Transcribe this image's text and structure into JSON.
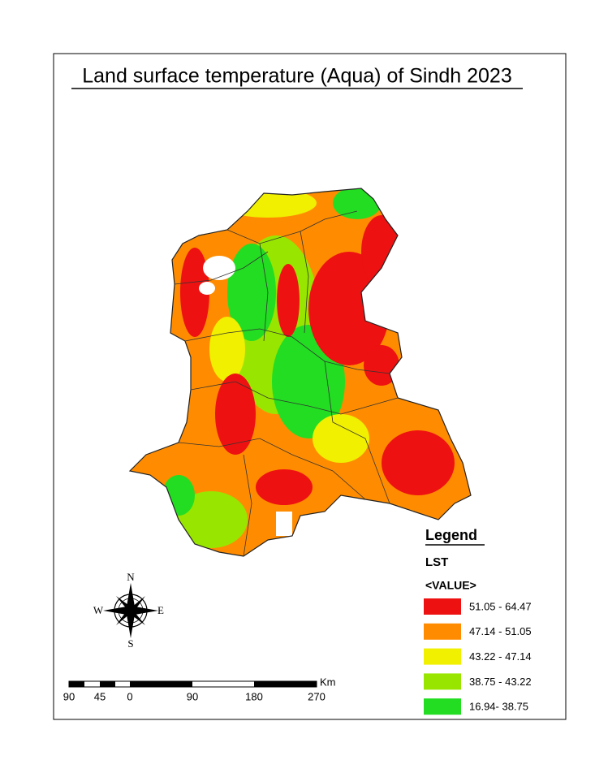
{
  "title": "Land surface temperature (Aqua) of Sindh 2023",
  "compass": {
    "n": "N",
    "e": "E",
    "s": "S",
    "w": "W"
  },
  "scale_bar": {
    "labels": [
      "90",
      "45",
      "0",
      "90",
      "180",
      "270"
    ],
    "unit": "Km"
  },
  "legend": {
    "title": "Legend",
    "layer": "LST",
    "field": "<VALUE>",
    "classes": [
      {
        "label": "51.05 - 64.47",
        "color": "#ee1111"
      },
      {
        "label": "47.14 - 51.05",
        "color": "#ff8c00"
      },
      {
        "label": "43.22 - 47.14",
        "color": "#f0f000"
      },
      {
        "label": "38.75 - 43.22",
        "color": "#98e600"
      },
      {
        "label": "16.94- 38.75",
        "color": "#22dd22"
      }
    ]
  }
}
